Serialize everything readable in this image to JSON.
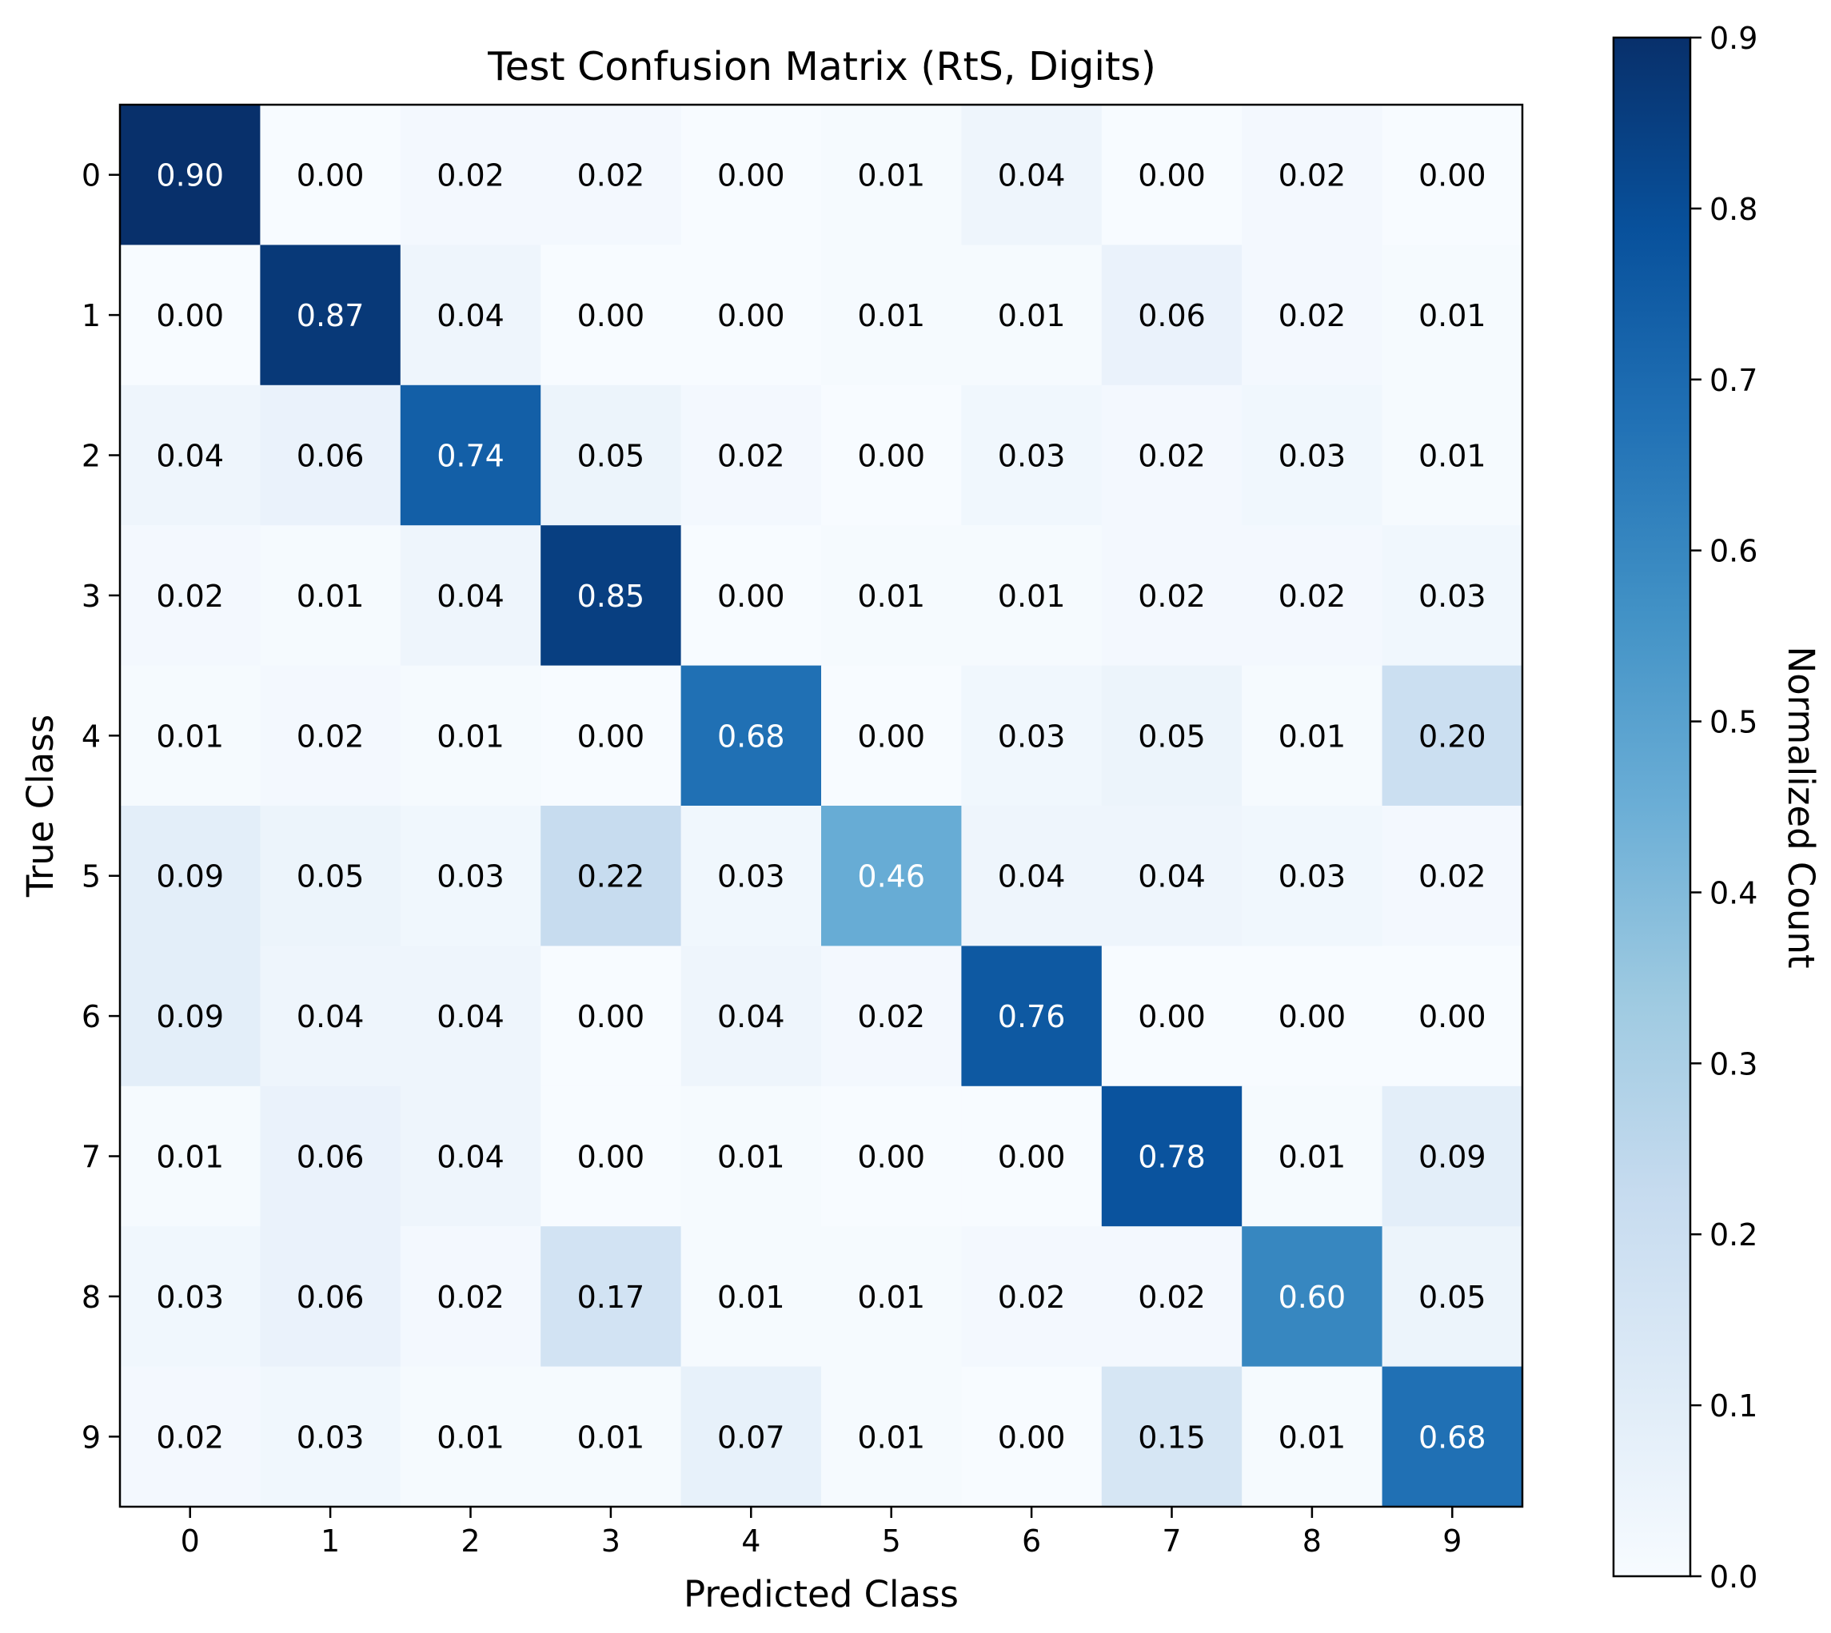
{
  "chart_data": {
    "type": "heatmap",
    "title": "Test Confusion Matrix (RtS, Digits)",
    "xlabel": "Predicted Class",
    "ylabel": "True Class",
    "x_categories": [
      "0",
      "1",
      "2",
      "3",
      "4",
      "5",
      "6",
      "7",
      "8",
      "9"
    ],
    "y_categories": [
      "0",
      "1",
      "2",
      "3",
      "4",
      "5",
      "6",
      "7",
      "8",
      "9"
    ],
    "values": [
      [
        0.9,
        0.0,
        0.02,
        0.02,
        0.0,
        0.01,
        0.04,
        0.0,
        0.02,
        0.0
      ],
      [
        0.0,
        0.87,
        0.04,
        0.0,
        0.0,
        0.01,
        0.01,
        0.06,
        0.02,
        0.01
      ],
      [
        0.04,
        0.06,
        0.74,
        0.05,
        0.02,
        0.0,
        0.03,
        0.02,
        0.03,
        0.01
      ],
      [
        0.02,
        0.01,
        0.04,
        0.85,
        0.0,
        0.01,
        0.01,
        0.02,
        0.02,
        0.03
      ],
      [
        0.01,
        0.02,
        0.01,
        0.0,
        0.68,
        0.0,
        0.03,
        0.05,
        0.01,
        0.2
      ],
      [
        0.09,
        0.05,
        0.03,
        0.22,
        0.03,
        0.46,
        0.04,
        0.04,
        0.03,
        0.02
      ],
      [
        0.09,
        0.04,
        0.04,
        0.0,
        0.04,
        0.02,
        0.76,
        0.0,
        0.0,
        0.0
      ],
      [
        0.01,
        0.06,
        0.04,
        0.0,
        0.01,
        0.0,
        0.0,
        0.78,
        0.01,
        0.09
      ],
      [
        0.03,
        0.06,
        0.02,
        0.17,
        0.01,
        0.01,
        0.02,
        0.02,
        0.6,
        0.05
      ],
      [
        0.02,
        0.03,
        0.01,
        0.01,
        0.07,
        0.01,
        0.0,
        0.15,
        0.01,
        0.68
      ]
    ],
    "colorbar": {
      "label": "Normalized Count",
      "range": [
        0.0,
        0.9
      ],
      "ticks": [
        "0.0",
        "0.1",
        "0.2",
        "0.3",
        "0.4",
        "0.5",
        "0.6",
        "0.7",
        "0.8",
        "0.9"
      ],
      "colormap": "Blues"
    },
    "colors": {
      "low": "#f7fbff",
      "high": "#08306b",
      "text_dark": "#000000",
      "text_light": "#ffffff"
    }
  }
}
